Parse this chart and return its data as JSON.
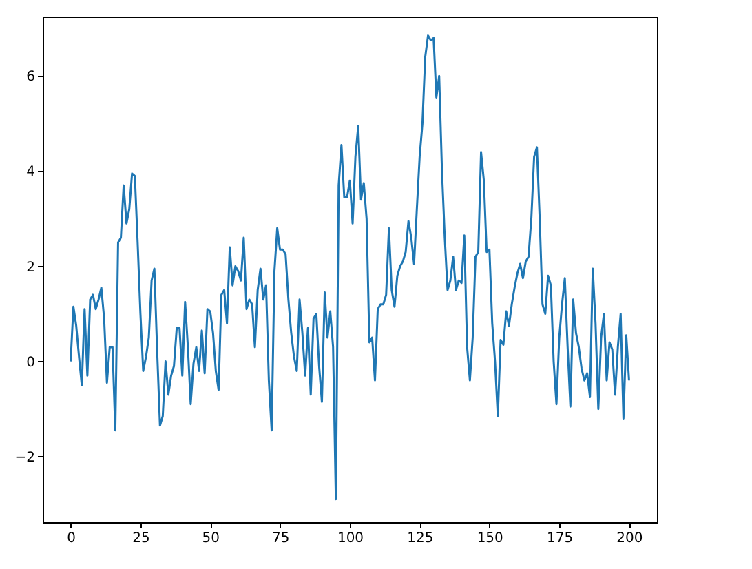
{
  "chart_data": {
    "type": "line",
    "x": [
      0,
      1,
      2,
      3,
      4,
      5,
      6,
      7,
      8,
      9,
      10,
      11,
      12,
      13,
      14,
      15,
      16,
      17,
      18,
      19,
      20,
      21,
      22,
      23,
      24,
      25,
      26,
      27,
      28,
      29,
      30,
      31,
      32,
      33,
      34,
      35,
      36,
      37,
      38,
      39,
      40,
      41,
      42,
      43,
      44,
      45,
      46,
      47,
      48,
      49,
      50,
      51,
      52,
      53,
      54,
      55,
      56,
      57,
      58,
      59,
      60,
      61,
      62,
      63,
      64,
      65,
      66,
      67,
      68,
      69,
      70,
      71,
      72,
      73,
      74,
      75,
      76,
      77,
      78,
      79,
      80,
      81,
      82,
      83,
      84,
      85,
      86,
      87,
      88,
      89,
      90,
      91,
      92,
      93,
      94,
      95,
      96,
      97,
      98,
      99,
      100,
      101,
      102,
      103,
      104,
      105,
      106,
      107,
      108,
      109,
      110,
      111,
      112,
      113,
      114,
      115,
      116,
      117,
      118,
      119,
      120,
      121,
      122,
      123,
      124,
      125,
      126,
      127,
      128,
      129,
      130,
      131,
      132,
      133,
      134,
      135,
      136,
      137,
      138,
      139,
      140,
      141,
      142,
      143,
      144,
      145,
      146,
      147,
      148,
      149,
      150,
      151,
      152,
      153,
      154,
      155,
      156,
      157,
      158,
      159,
      160,
      161,
      162,
      163,
      164,
      165,
      166,
      167,
      168,
      169,
      170,
      171,
      172,
      173,
      174,
      175,
      176,
      177,
      178,
      179,
      180,
      181,
      182,
      183,
      184,
      185,
      186,
      187,
      188,
      189,
      190,
      191,
      192,
      193,
      194,
      195,
      196,
      197,
      198,
      199,
      200
    ],
    "series": [
      {
        "color": "#1f77b4",
        "values": [
          0,
          1.15,
          0.75,
          0.1,
          -0.5,
          1.1,
          -0.3,
          1.3,
          1.4,
          1.1,
          1.3,
          1.55,
          0.9,
          -0.45,
          0.3,
          0.3,
          -1.45,
          2.5,
          2.6,
          3.7,
          2.9,
          3.2,
          3.95,
          3.9,
          2.5,
          1.0,
          -0.2,
          0.1,
          0.5,
          1.7,
          1.95,
          0.2,
          -1.35,
          -1.15,
          0.0,
          -0.7,
          -0.3,
          -0.1,
          0.7,
          0.7,
          -0.3,
          1.25,
          0.3,
          -0.9,
          -0.05,
          0.3,
          -0.2,
          0.65,
          -0.25,
          1.1,
          1.05,
          0.6,
          -0.2,
          -0.6,
          1.4,
          1.5,
          0.8,
          2.4,
          1.6,
          2.0,
          1.9,
          1.7,
          2.6,
          1.1,
          1.3,
          1.2,
          0.3,
          1.5,
          1.95,
          1.3,
          1.6,
          -0.4,
          -1.45,
          1.9,
          2.8,
          2.35,
          2.35,
          2.25,
          1.3,
          0.6,
          0.1,
          -0.2,
          1.3,
          0.6,
          -0.3,
          0.7,
          -0.7,
          0.9,
          1.0,
          -0.1,
          -0.85,
          1.45,
          0.5,
          1.05,
          0.3,
          -2.9,
          3.7,
          4.55,
          3.45,
          3.45,
          3.8,
          2.9,
          4.3,
          4.95,
          3.4,
          3.75,
          3.0,
          0.4,
          0.5,
          -0.4,
          1.1,
          1.2,
          1.2,
          1.4,
          2.8,
          1.5,
          1.15,
          1.8,
          2.0,
          2.1,
          2.3,
          2.95,
          2.6,
          2.05,
          3.2,
          4.3,
          5.0,
          6.4,
          6.85,
          6.75,
          6.8,
          5.55,
          6.0,
          4.0,
          2.6,
          1.5,
          1.7,
          2.2,
          1.5,
          1.7,
          1.65,
          2.65,
          0.3,
          -0.4,
          0.5,
          2.2,
          2.3,
          4.4,
          3.8,
          2.3,
          2.35,
          0.8,
          0.0,
          -1.15,
          0.45,
          0.35,
          1.05,
          0.75,
          1.2,
          1.55,
          1.85,
          2.05,
          1.75,
          2.1,
          2.2,
          3.0,
          4.3,
          4.5,
          3.0,
          1.2,
          1.0,
          1.8,
          1.6,
          0.0,
          -0.9,
          0.5,
          1.2,
          1.75,
          0.3,
          -0.95,
          1.3,
          0.6,
          0.3,
          -0.15,
          -0.4,
          -0.25,
          -0.75,
          1.95,
          0.8,
          -1.0,
          0.5,
          1.0,
          -0.4,
          0.4,
          0.25,
          -0.7,
          0.3,
          1.0,
          -1.2,
          0.55,
          -0.4
        ]
      }
    ],
    "xlim": [
      -10,
      210
    ],
    "xticks": [
      0,
      25,
      50,
      75,
      100,
      125,
      150,
      175,
      200
    ],
    "ylim": [
      -3.38,
      7.25
    ],
    "yticks": [
      -2,
      0,
      2,
      4,
      6
    ],
    "grid": false
  }
}
